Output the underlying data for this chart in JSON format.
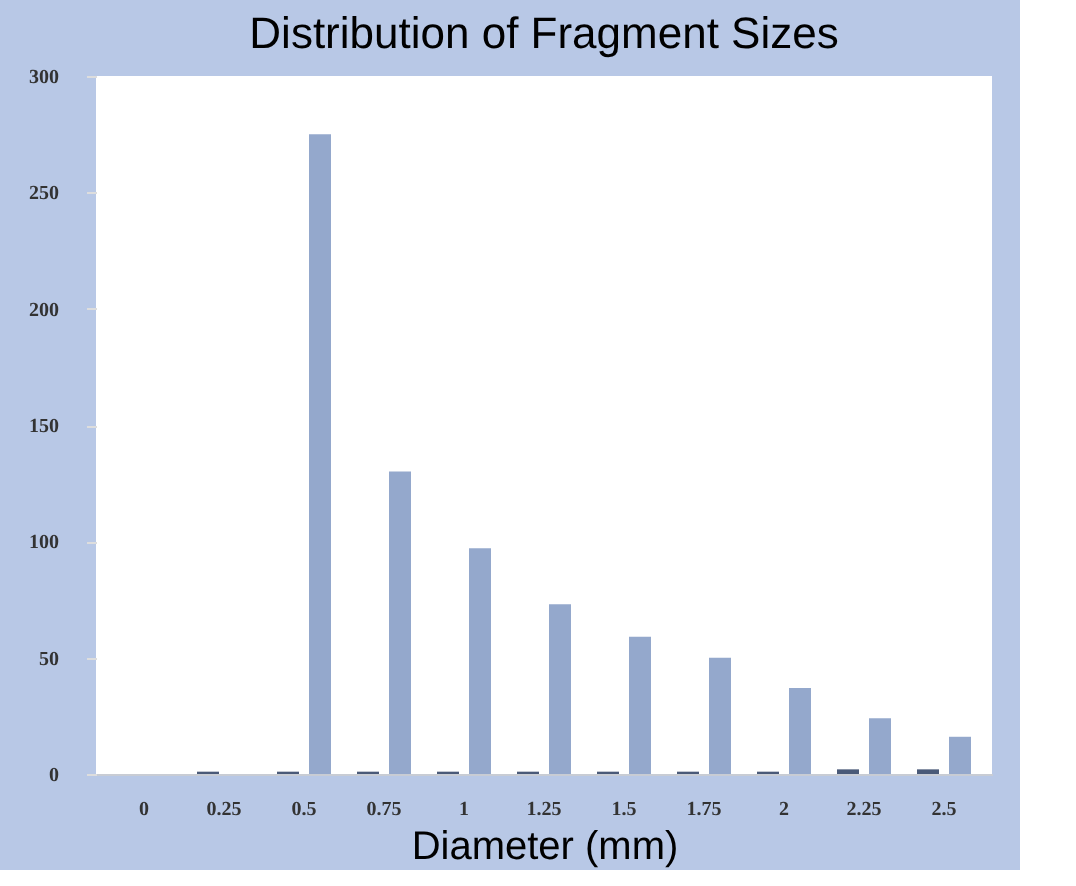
{
  "chart_data": {
    "type": "bar",
    "title": "Distribution of Fragment Sizes",
    "xlabel": "Diameter (mm)",
    "categories": [
      "0",
      "0.25",
      "0.5",
      "0.75",
      "1",
      "1.25",
      "1.5",
      "1.75",
      "2",
      "2.25",
      "2.5"
    ],
    "series": [
      {
        "color": "#4a5a78",
        "values": [
          0,
          1,
          1,
          1,
          1,
          1,
          1,
          1,
          1,
          2,
          2
        ]
      },
      {
        "color": "#94a8cc",
        "values": [
          0,
          0,
          275,
          130,
          97,
          73,
          59,
          50,
          37,
          24,
          16
        ]
      }
    ],
    "ylim": [
      0,
      300
    ],
    "yticks": [
      0,
      50,
      100,
      150,
      200,
      250,
      300
    ],
    "grid": false,
    "legend": false
  }
}
